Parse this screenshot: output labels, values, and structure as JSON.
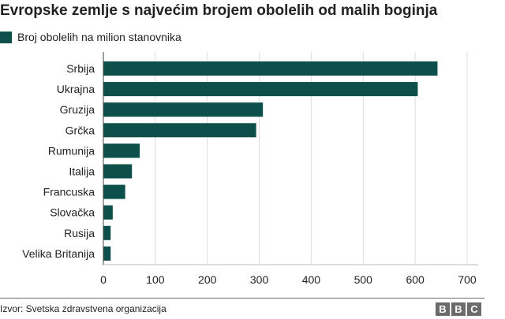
{
  "title": "Evropske zemlje s najvećim brojem obolelih od malih boginja",
  "legend": {
    "label": "Broj obolelih na milion stanovnika",
    "color": "#0d4f4a"
  },
  "footer": {
    "source": "Izvor: Svetska zdravstvena organizacija",
    "logo_letters": [
      "B",
      "B",
      "C"
    ]
  },
  "chart_data": {
    "type": "bar",
    "orientation": "horizontal",
    "categories": [
      "Srbija",
      "Ukrajna",
      "Gruzija",
      "Grčka",
      "Rumunija",
      "Italija",
      "Francuska",
      "Slovačka",
      "Rusija",
      "Velika Britanija"
    ],
    "series": [
      {
        "name": "Broj obolelih na milion stanovnika",
        "values": [
          643,
          605,
          307,
          294,
          70,
          55,
          42,
          18,
          14,
          14
        ]
      }
    ],
    "xlim": [
      0,
      700
    ],
    "xticks": [
      0,
      100,
      200,
      300,
      400,
      500,
      600,
      700
    ],
    "grid": "vertical",
    "color": "#0d4f4a"
  }
}
